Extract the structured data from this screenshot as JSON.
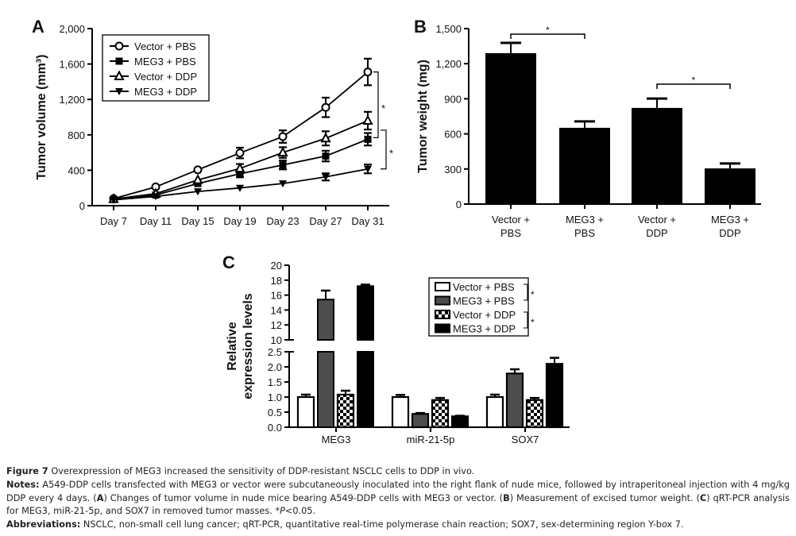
{
  "figure": {
    "caption_title_label": "Figure 7",
    "caption_title_text": " Overexpression of MEG3 increased the sensitivity of DDP-resistant NSCLC cells to DDP in vivo.",
    "notes_label": "Notes:",
    "notes_text_1": " A549-DDP cells transfected with MEG3 or vector were subcutaneously inoculated into the right flank of nude mice, followed by intraperitoneal injection with 4 mg/kg DDP every 4 days. (",
    "notes_A": "A",
    "notes_text_2": ") Changes of tumor volume in nude mice bearing A549-DDP cells with MEG3 or vector. (",
    "notes_B": "B",
    "notes_text_3": ") Measurement of excised tumor weight. (",
    "notes_C": "C",
    "notes_text_4": ") qRT-PCR analysis for MEG3, miR-21-5p, and SOX7 in removed tumor masses. *",
    "notes_p": "P",
    "notes_text_5": "<0.05.",
    "abbrev_label": "Abbreviations:",
    "abbrev_text": " NSCLC, non-small cell lung cancer; qRT-PCR, quantitative real-time polymerase chain reaction; SOX7, sex-determining region Y-box 7."
  },
  "chart_data": [
    {
      "panel": "A",
      "type": "line",
      "title": "",
      "xlabel": "",
      "ylabel": "Tumor volume (mm³)",
      "ylim": [
        0,
        2000
      ],
      "yticks": [
        0,
        400,
        800,
        1200,
        1600,
        2000
      ],
      "ytick_labels": [
        "0",
        "400",
        "800",
        "1,200",
        "1,600",
        "2,000"
      ],
      "x": [
        "Day 7",
        "Day 11",
        "Day 15",
        "Day 19",
        "Day 23",
        "Day 27",
        "Day 31"
      ],
      "legend_position": "top-left",
      "series": [
        {
          "name": "Vector + PBS",
          "marker": "open-circle",
          "values": [
            80,
            212,
            405,
            595,
            780,
            1110,
            1510
          ],
          "errors": [
            20,
            25,
            30,
            60,
            70,
            110,
            150
          ]
        },
        {
          "name": "MEG3 + PBS",
          "marker": "filled-square",
          "values": [
            70,
            120,
            250,
            360,
            460,
            560,
            750
          ],
          "errors": [
            15,
            20,
            25,
            40,
            50,
            60,
            70
          ]
        },
        {
          "name": "Vector + DDP",
          "marker": "open-triangle-up",
          "values": [
            75,
            135,
            290,
            420,
            600,
            760,
            960
          ],
          "errors": [
            15,
            20,
            30,
            50,
            60,
            80,
            100
          ]
        },
        {
          "name": "MEG3 + DDP",
          "marker": "filled-triangle-down",
          "values": [
            65,
            105,
            160,
            200,
            250,
            325,
            415
          ],
          "errors": [
            10,
            10,
            15,
            15,
            20,
            40,
            50
          ]
        }
      ],
      "annotations": [
        {
          "text": "*",
          "between": [
            "Vector + PBS",
            "MEG3 + PBS"
          ],
          "at": "Day 31"
        },
        {
          "text": "*",
          "between": [
            "Vector + DDP",
            "MEG3 + DDP"
          ],
          "at": "Day 31"
        }
      ]
    },
    {
      "panel": "B",
      "type": "bar",
      "title": "",
      "xlabel": "",
      "ylabel": "Tumor weight (mg)",
      "ylim": [
        0,
        1500
      ],
      "yticks": [
        0,
        300,
        600,
        900,
        1200,
        1500
      ],
      "ytick_labels": [
        "0",
        "300",
        "600",
        "900",
        "1,200",
        "1,500"
      ],
      "categories": [
        [
          "Vector +",
          "PBS"
        ],
        [
          "MEG3 +",
          "PBS"
        ],
        [
          "Vector +",
          "DDP"
        ],
        [
          "MEG3 +",
          "DDP"
        ]
      ],
      "values": [
        1290,
        652,
        822,
        305
      ],
      "errors": [
        88,
        55,
        80,
        42
      ],
      "bar_color": "#000000",
      "annotations": [
        {
          "text": "*",
          "between": [
            0,
            1
          ]
        },
        {
          "text": "*",
          "between": [
            2,
            3
          ]
        }
      ]
    },
    {
      "panel": "C",
      "type": "bar",
      "title": "",
      "xlabel": "",
      "ylabel": [
        "Relative",
        "expression levels"
      ],
      "y_axis_break": true,
      "ylim_lower": [
        0,
        2.5
      ],
      "ylim_upper": [
        10,
        20
      ],
      "yticks_lower": [
        "0.0",
        "0.5",
        "1.0",
        "1.5",
        "2.0",
        "2.5"
      ],
      "yticks_upper": [
        "10",
        "12",
        "14",
        "16",
        "18",
        "20"
      ],
      "categories": [
        "MEG3",
        "miR-21-5p",
        "SOX7"
      ],
      "legend_position": "top-right",
      "series": [
        {
          "name": "Vector + PBS",
          "fill": "white",
          "values": [
            1.0,
            1.0,
            1.0
          ],
          "errors": [
            0.08,
            0.07,
            0.08
          ]
        },
        {
          "name": "MEG3 + PBS",
          "fill": "dark-gray",
          "values": [
            15.4,
            0.44,
            1.78
          ],
          "errors": [
            1.2,
            0.03,
            0.14
          ]
        },
        {
          "name": "Vector + DDP",
          "fill": "checkerboard",
          "values": [
            1.08,
            0.9,
            0.9
          ],
          "errors": [
            0.13,
            0.07,
            0.07
          ]
        },
        {
          "name": "MEG3 + DDP",
          "fill": "black",
          "values": [
            17.2,
            0.36,
            2.1
          ],
          "errors": [
            0.2,
            0.02,
            0.2
          ]
        }
      ],
      "legend_annotations": [
        {
          "text": "*",
          "between": [
            "Vector + PBS",
            "MEG3 + PBS"
          ]
        },
        {
          "text": "*",
          "between": [
            "Vector + DDP",
            "MEG3 + DDP"
          ]
        }
      ],
      "colors": {
        "dark_gray": "#4d4d4d",
        "black": "#000000",
        "white": "#ffffff"
      }
    }
  ],
  "panel_labels": [
    "A",
    "B",
    "C"
  ]
}
